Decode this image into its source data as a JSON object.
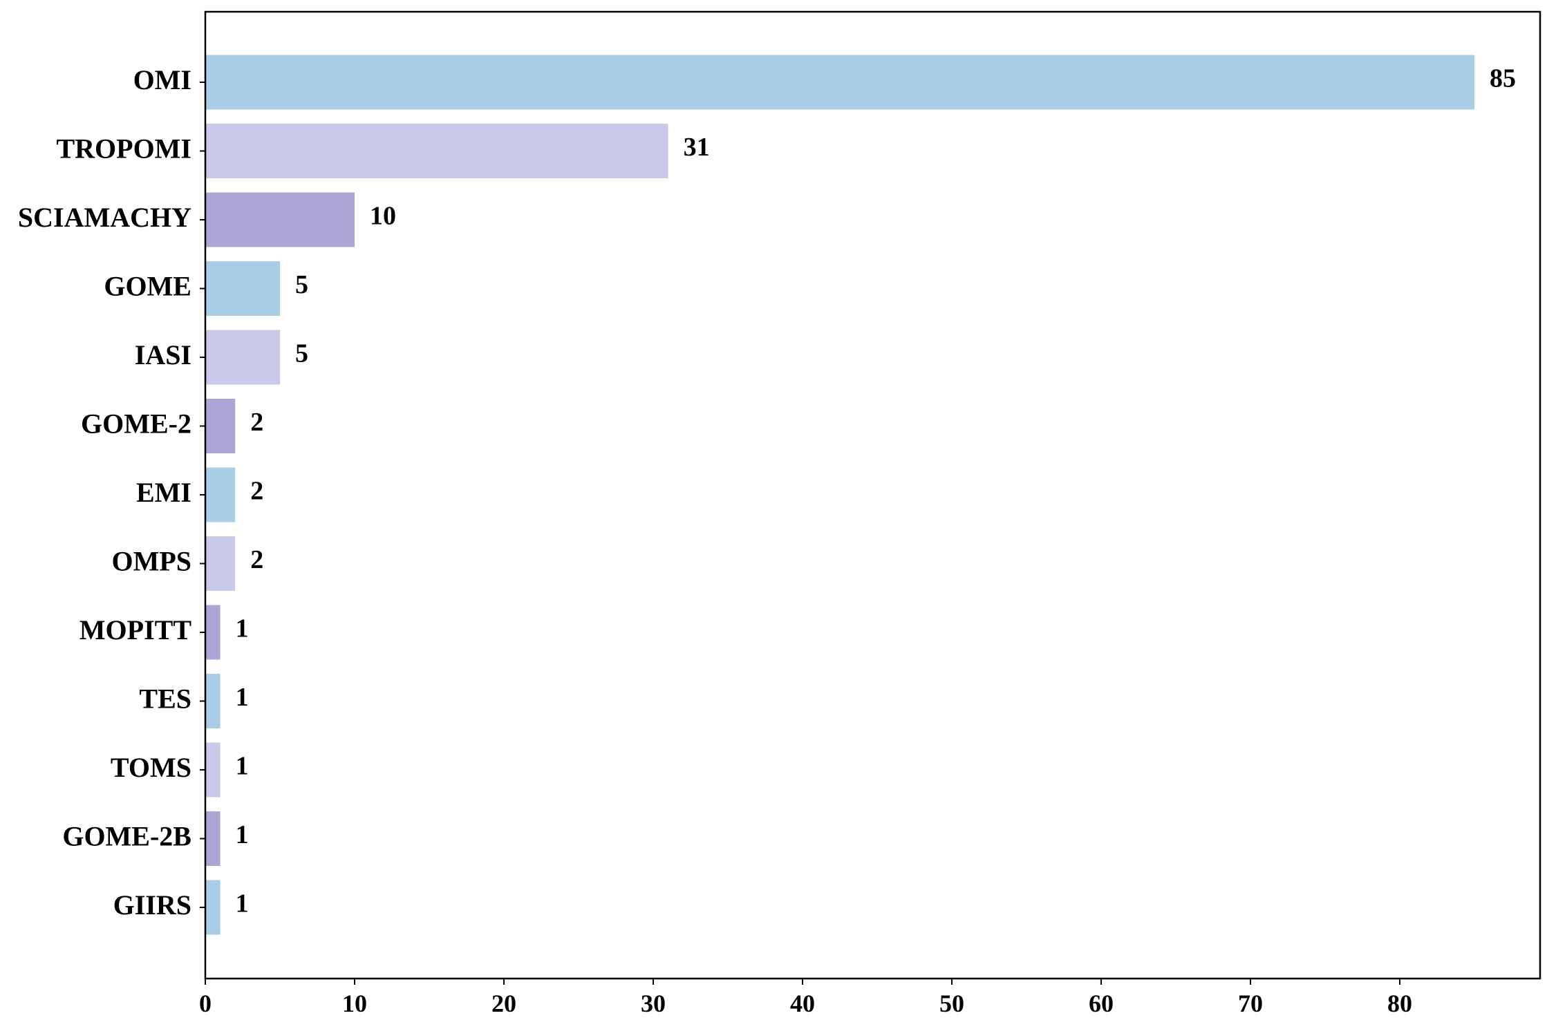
{
  "chart_data": {
    "type": "bar",
    "orientation": "horizontal",
    "categories": [
      "OMI",
      "TROPOMI",
      "SCIAMACHY",
      "GOME",
      "IASI",
      "GOME-2",
      "EMI",
      "OMPS",
      "MOPITT",
      "TES",
      "TOMS",
      "GOME-2B",
      "GIIRS"
    ],
    "values": [
      85,
      31,
      10,
      5,
      5,
      2,
      2,
      2,
      1,
      1,
      1,
      1,
      1
    ],
    "data_labels": [
      "85",
      "31",
      "10",
      "5",
      "5",
      "2",
      "2",
      "2",
      "1",
      "1",
      "1",
      "1",
      "1"
    ],
    "bar_colors": [
      "#a8cde4",
      "#c9c9e9",
      "#aca6d6"
    ],
    "title": "",
    "xlabel": "",
    "ylabel": "",
    "xlim": [
      0,
      89.4
    ],
    "xticks": [
      0,
      10,
      20,
      30,
      40,
      50,
      60,
      70,
      80
    ],
    "xtick_labels": [
      "0",
      "10",
      "20",
      "30",
      "40",
      "50",
      "60",
      "70",
      "80"
    ],
    "grid": false,
    "legend": "none"
  }
}
